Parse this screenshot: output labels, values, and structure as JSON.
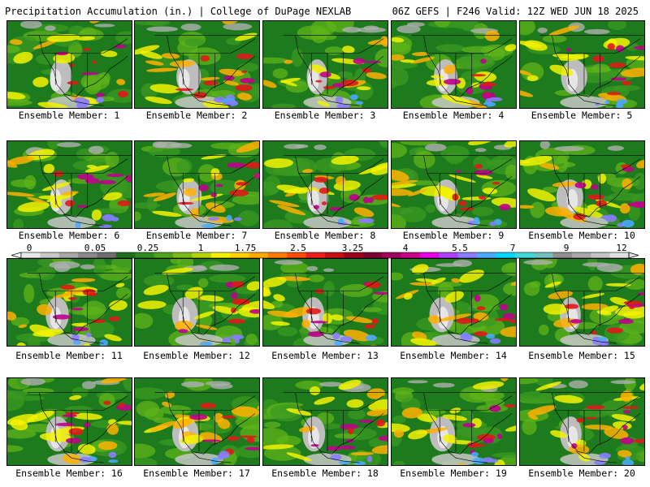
{
  "header": {
    "title": "Precipitation Accumulation (in.) | College of DuPage NEXLAB",
    "run_info": "06Z GEFS | F246 Valid: 12Z WED JUN 18 2025"
  },
  "members": [
    {
      "label": "Ensemble Member: 1"
    },
    {
      "label": "Ensemble Member: 2"
    },
    {
      "label": "Ensemble Member: 3"
    },
    {
      "label": "Ensemble Member: 4"
    },
    {
      "label": "Ensemble Member: 5"
    },
    {
      "label": "Ensemble Member: 6"
    },
    {
      "label": "Ensemble Member: 7"
    },
    {
      "label": "Ensemble Member: 8"
    },
    {
      "label": "Ensemble Member: 9"
    },
    {
      "label": "Ensemble Member: 10"
    },
    {
      "label": "Ensemble Member: 11"
    },
    {
      "label": "Ensemble Member: 12"
    },
    {
      "label": "Ensemble Member: 13"
    },
    {
      "label": "Ensemble Member: 14"
    },
    {
      "label": "Ensemble Member: 15"
    },
    {
      "label": "Ensemble Member: 16"
    },
    {
      "label": "Ensemble Member: 17"
    },
    {
      "label": "Ensemble Member: 18"
    },
    {
      "label": "Ensemble Member: 19"
    },
    {
      "label": "Ensemble Member: 20"
    }
  ],
  "colorbar": {
    "labels": [
      "0",
      "0.05",
      "0.25",
      "1",
      "1.75",
      "2.5",
      "3.25",
      "4",
      "5.5",
      "7",
      "9",
      "12"
    ],
    "colors": [
      "#e8e8e8",
      "#c8c8c8",
      "#a8a8a8",
      "#8a8a8a",
      "#6e6e6e",
      "#1d6f1d",
      "#2e8b1e",
      "#4ca31c",
      "#79bd14",
      "#b3d40a",
      "#f2f200",
      "#ffd000",
      "#ffa800",
      "#ff7a00",
      "#ff4a00",
      "#ee1c1c",
      "#c80f0f",
      "#a0001a",
      "#7a0030",
      "#a0005a",
      "#c8008c",
      "#e800e8",
      "#b040ff",
      "#8a7cff",
      "#4aa8ff",
      "#00d8ff",
      "#40d8d8",
      "#70c0c0",
      "#909090",
      "#a8a8a8",
      "#c4c4c4",
      "#e0e0e0"
    ]
  }
}
